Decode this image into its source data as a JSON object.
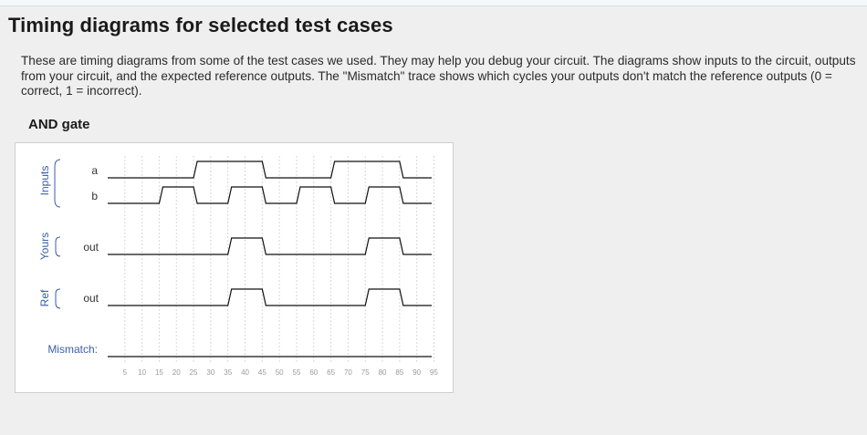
{
  "page": {
    "title": "Timing diagrams for selected test cases",
    "intro": "These are timing diagrams from some of the test cases we used. They may help you debug your circuit. The diagrams show inputs to the circuit, outputs from your circuit, and the expected reference outputs. The \"Mismatch\" trace shows which cycles your outputs don't match the reference outputs (0 = correct, 1 = incorrect)."
  },
  "test_case": {
    "title": "AND gate",
    "groups": [
      {
        "label": "Inputs",
        "signals": [
          "a",
          "b"
        ]
      },
      {
        "label": "Yours",
        "signals": [
          "out"
        ]
      },
      {
        "label": "Ref",
        "signals": [
          "out"
        ]
      }
    ],
    "mismatch_label": "Mismatch:",
    "time_ticks": [
      "5",
      "10",
      "15",
      "20",
      "25",
      "30",
      "35",
      "40",
      "45",
      "50",
      "55",
      "60",
      "65",
      "70",
      "75",
      "80",
      "85",
      "90",
      "95"
    ]
  },
  "chart_data": {
    "type": "timing",
    "time_unit_per_tick": 5,
    "sample_times": [
      0,
      5,
      10,
      15,
      20,
      25,
      30,
      35,
      40,
      45,
      50,
      55,
      60,
      65,
      70,
      75,
      80,
      85,
      90
    ],
    "traces": [
      {
        "group": "Inputs",
        "name": "a",
        "values": [
          0,
          0,
          0,
          0,
          0,
          1,
          1,
          1,
          1,
          0,
          0,
          0,
          0,
          1,
          1,
          1,
          1,
          0,
          0
        ]
      },
      {
        "group": "Inputs",
        "name": "b",
        "values": [
          0,
          0,
          0,
          1,
          1,
          0,
          0,
          1,
          1,
          0,
          0,
          1,
          1,
          0,
          0,
          1,
          1,
          0,
          0
        ]
      },
      {
        "group": "Yours",
        "name": "out",
        "values": [
          0,
          0,
          0,
          0,
          0,
          0,
          0,
          1,
          1,
          0,
          0,
          0,
          0,
          0,
          0,
          1,
          1,
          0,
          0
        ]
      },
      {
        "group": "Ref",
        "name": "out",
        "values": [
          0,
          0,
          0,
          0,
          0,
          0,
          0,
          1,
          1,
          0,
          0,
          0,
          0,
          0,
          0,
          1,
          1,
          0,
          0
        ]
      },
      {
        "group": "Mismatch",
        "name": "Mismatch:",
        "values": [
          0,
          0,
          0,
          0,
          0,
          0,
          0,
          0,
          0,
          0,
          0,
          0,
          0,
          0,
          0,
          0,
          0,
          0,
          0
        ]
      }
    ]
  },
  "colors": {
    "trace": "#111111",
    "group_label": "#3a5ea8",
    "grid": "#d8d8d8",
    "tick_label": "#9a9a9a"
  }
}
